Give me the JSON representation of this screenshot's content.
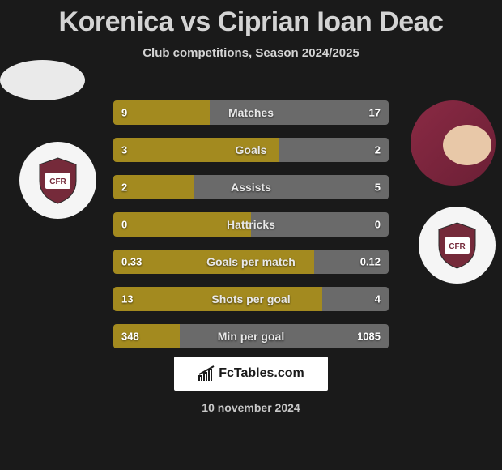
{
  "title": "Korenica vs Ciprian Ioan Deac",
  "subtitle": "Club competitions, Season 2024/2025",
  "date": "10 november 2024",
  "brand": "FcTables.com",
  "colors": {
    "left_bar": "#a38a1f",
    "right_bar": "#6a6a6a",
    "background": "#1a1a1a",
    "title_text": "#d4d4d4",
    "badge_bg": "#f5f5f5",
    "club_primary": "#752a3a",
    "avatar_placeholder": "#eaeaea"
  },
  "stats": [
    {
      "label": "Matches",
      "left_val": "9",
      "left_pct": 35,
      "right_val": "17",
      "right_pct": 65
    },
    {
      "label": "Goals",
      "left_val": "3",
      "left_pct": 60,
      "right_val": "2",
      "right_pct": 40
    },
    {
      "label": "Assists",
      "left_val": "2",
      "left_pct": 29,
      "right_val": "5",
      "right_pct": 71
    },
    {
      "label": "Hattricks",
      "left_val": "0",
      "left_pct": 50,
      "right_val": "0",
      "right_pct": 50
    },
    {
      "label": "Goals per match",
      "left_val": "0.33",
      "left_pct": 73,
      "right_val": "0.12",
      "right_pct": 27
    },
    {
      "label": "Shots per goal",
      "left_val": "13",
      "left_pct": 76,
      "right_val": "4",
      "right_pct": 24
    },
    {
      "label": "Min per goal",
      "left_val": "348",
      "left_pct": 24,
      "right_val": "1085",
      "right_pct": 76
    }
  ]
}
